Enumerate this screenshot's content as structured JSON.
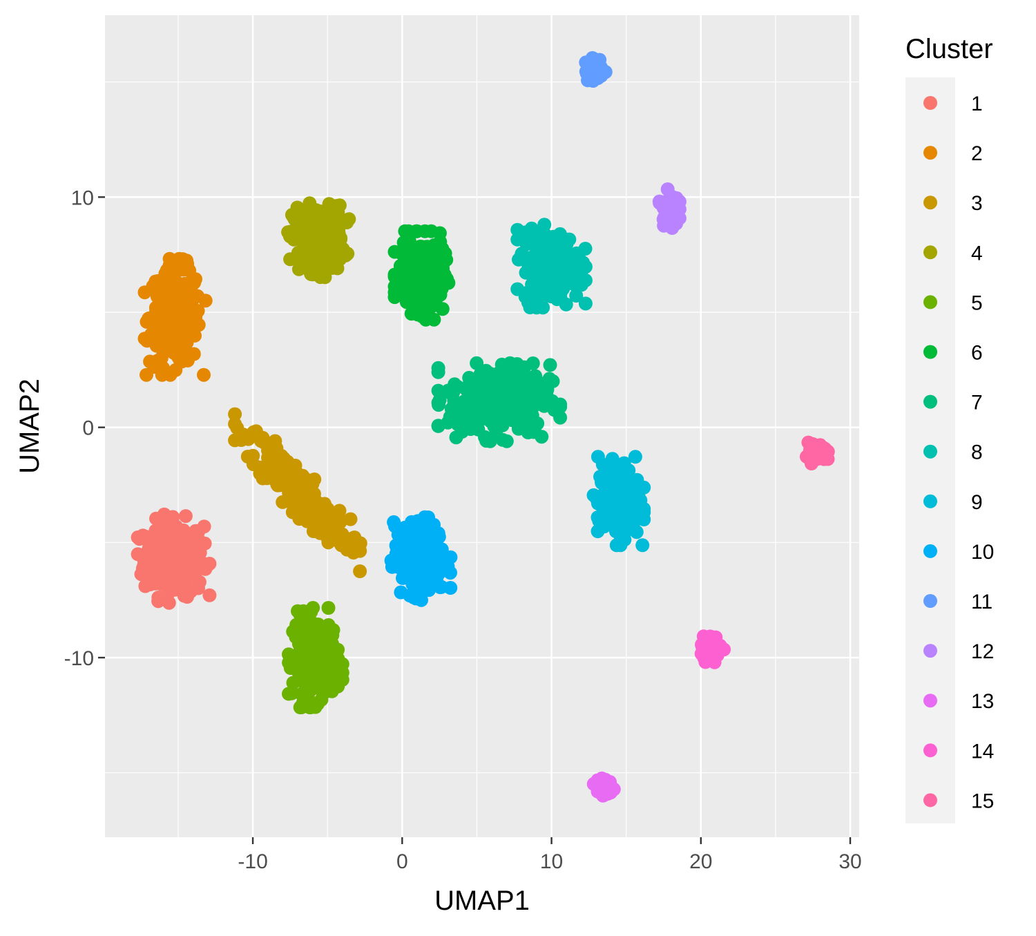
{
  "chart_data": {
    "type": "scatter",
    "title": "",
    "xlabel": "UMAP1",
    "ylabel": "UMAP2",
    "xlim": [
      -19.9,
      30.6
    ],
    "ylim": [
      -17.8,
      17.9
    ],
    "xticks": [
      -10,
      0,
      10,
      20,
      30
    ],
    "yticks": [
      -10,
      0,
      10
    ],
    "xtick_labels": [
      "-10",
      "0",
      "10",
      "20",
      "30"
    ],
    "ytick_labels": [
      "-10",
      "0",
      "10"
    ],
    "grid": true,
    "legend": {
      "title": "Cluster",
      "position": "right"
    },
    "series": [
      {
        "name": "1",
        "color": "#F8766D",
        "center": [
          -15.3,
          -5.7
        ],
        "spread": [
          1.0,
          0.8
        ],
        "n": 260
      },
      {
        "name": "2",
        "color": "#E58700",
        "center": [
          -15.2,
          4.8
        ],
        "spread": [
          0.85,
          1.05
        ],
        "n": 240
      },
      {
        "name": "3",
        "color": "#C99800",
        "center": [
          -7.0,
          -2.7
        ],
        "spread": [
          1.75,
          0.5
        ],
        "tilt": -0.65,
        "n": 270
      },
      {
        "name": "4",
        "color": "#A3A500",
        "center": [
          -5.6,
          8.2
        ],
        "spread": [
          0.85,
          0.7
        ],
        "n": 230
      },
      {
        "name": "5",
        "color": "#6BB100",
        "center": [
          -5.8,
          -10.0
        ],
        "spread": [
          0.75,
          0.9
        ],
        "n": 230
      },
      {
        "name": "6",
        "color": "#00BA38",
        "center": [
          1.3,
          6.6
        ],
        "spread": [
          0.75,
          0.8
        ],
        "n": 230
      },
      {
        "name": "7",
        "color": "#00BF7D",
        "center": [
          6.5,
          1.2
        ],
        "spread": [
          1.7,
          0.75
        ],
        "n": 300
      },
      {
        "name": "8",
        "color": "#00C0AF",
        "center": [
          10.0,
          7.0
        ],
        "spread": [
          0.95,
          0.75
        ],
        "n": 250
      },
      {
        "name": "9",
        "color": "#00BCD8",
        "center": [
          14.5,
          -3.2
        ],
        "spread": [
          0.7,
          0.8
        ],
        "n": 220
      },
      {
        "name": "10",
        "color": "#00B0F6",
        "center": [
          1.2,
          -5.7
        ],
        "spread": [
          0.85,
          0.75
        ],
        "n": 240
      },
      {
        "name": "11",
        "color": "#619CFF",
        "center": [
          12.9,
          15.5
        ],
        "spread": [
          0.3,
          0.25
        ],
        "n": 60
      },
      {
        "name": "12",
        "color": "#B983FF",
        "center": [
          17.9,
          9.5
        ],
        "spread": [
          0.28,
          0.35
        ],
        "n": 60
      },
      {
        "name": "13",
        "color": "#E76BF3",
        "center": [
          13.5,
          -15.6
        ],
        "spread": [
          0.28,
          0.2
        ],
        "n": 50
      },
      {
        "name": "14",
        "color": "#FD61D1",
        "center": [
          20.7,
          -9.6
        ],
        "spread": [
          0.35,
          0.25
        ],
        "n": 70
      },
      {
        "name": "15",
        "color": "#FF67A4",
        "center": [
          27.8,
          -1.1
        ],
        "spread": [
          0.3,
          0.2
        ],
        "n": 60
      }
    ]
  }
}
